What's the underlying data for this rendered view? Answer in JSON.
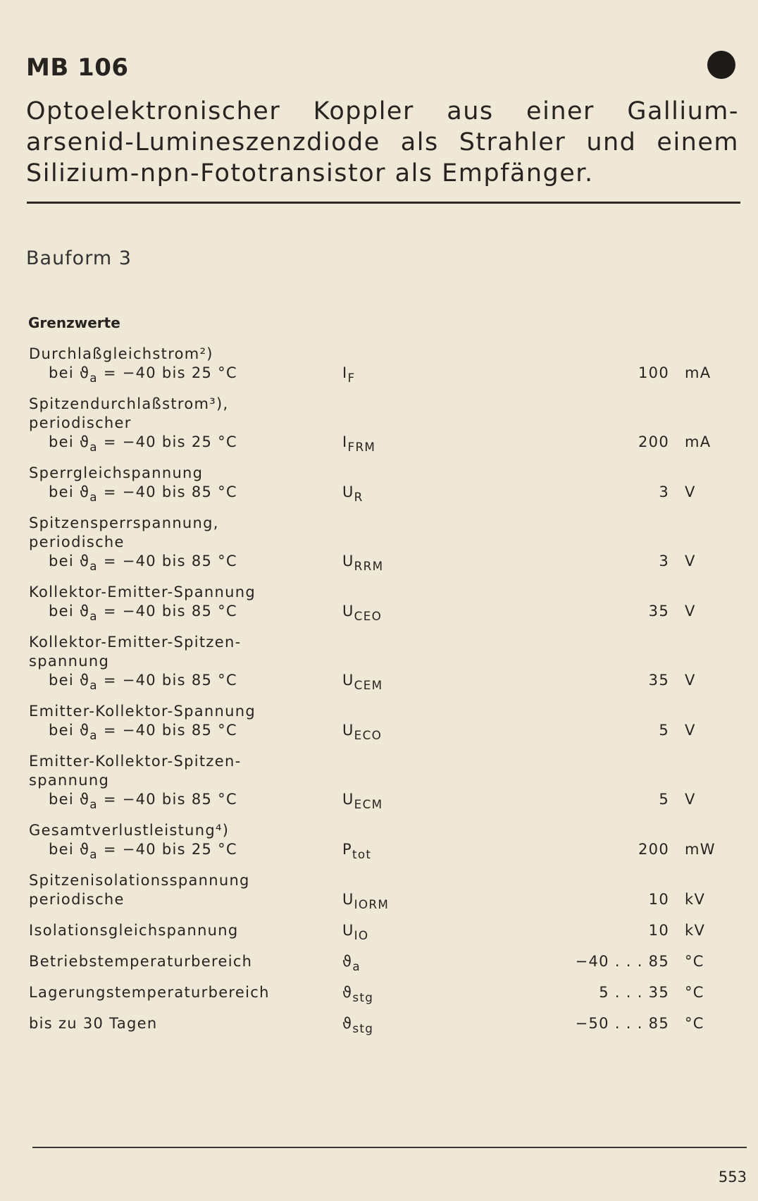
{
  "header": {
    "title": "MB 106",
    "description": [
      "Optoelektronischer Koppler aus einer Gallium-",
      "arsenid-Lumineszenzdiode als Strahler und einem",
      "Silizium-npn-Fototransistor als Empfänger."
    ]
  },
  "subtitle": "Bauform 3",
  "section": "Grenzwerte",
  "table": {
    "rows": [
      {
        "lines": [
          "Durchlaßgleichstrom²)"
        ],
        "condition": {
          "prefix": "bei ϑ",
          "subscript": "a",
          "text": " = −40 bis 25 °C"
        },
        "symbol": "I",
        "symbol_sub": "F",
        "value": "100",
        "unit": "mA"
      },
      {
        "lines": [
          "Spitzendurchlaßstrom³),",
          "periodischer"
        ],
        "condition": {
          "prefix": "bei ϑ",
          "subscript": "a",
          "text": " = −40 bis 25 °C"
        },
        "symbol": "I",
        "symbol_sub": "FRM",
        "value": "200",
        "unit": "mA"
      },
      {
        "lines": [
          "Sperrgleichspannung"
        ],
        "condition": {
          "prefix": "bei ϑ",
          "subscript": "a",
          "text": " = −40 bis 85 °C"
        },
        "symbol": "U",
        "symbol_sub": "R",
        "value": "3",
        "unit": "V"
      },
      {
        "lines": [
          "Spitzensperrspannung,",
          "periodische"
        ],
        "condition": {
          "prefix": "bei ϑ",
          "subscript": "a",
          "text": " = −40 bis 85 °C"
        },
        "symbol": "U",
        "symbol_sub": "RRM",
        "value": "3",
        "unit": "V"
      },
      {
        "lines": [
          "Kollektor-Emitter-Spannung"
        ],
        "condition": {
          "prefix": "bei ϑ",
          "subscript": "a",
          "text": " = −40 bis 85 °C"
        },
        "symbol": "U",
        "symbol_sub": "CEO",
        "value": "35",
        "unit": "V"
      },
      {
        "lines": [
          "Kollektor-Emitter-Spitzen-",
          "spannung"
        ],
        "condition": {
          "prefix": "bei ϑ",
          "subscript": "a",
          "text": " = −40 bis 85 °C"
        },
        "symbol": "U",
        "symbol_sub": "CEM",
        "value": "35",
        "unit": "V"
      },
      {
        "lines": [
          "Emitter-Kollektor-Spannung"
        ],
        "condition": {
          "prefix": "bei ϑ",
          "subscript": "a",
          "text": " = −40 bis 85 °C"
        },
        "symbol": "U",
        "symbol_sub": "ECO",
        "value": "5",
        "unit": "V"
      },
      {
        "lines": [
          "Emitter-Kollektor-Spitzen-",
          "spannung"
        ],
        "condition": {
          "prefix": "bei ϑ",
          "subscript": "a",
          "text": " = −40 bis 85 °C"
        },
        "symbol": "U",
        "symbol_sub": "ECM",
        "value": "5",
        "unit": "V"
      },
      {
        "lines": [
          "Gesamtverlustleistung⁴)"
        ],
        "condition": {
          "prefix": "bei ϑ",
          "subscript": "a",
          "text": " = −40 bis 25 °C"
        },
        "symbol": "P",
        "symbol_sub": "tot",
        "value": "200",
        "unit": "mW"
      },
      {
        "lines": [
          "Spitzenisolationsspannung",
          "periodische"
        ],
        "symbol": "U",
        "symbol_sub": "IORM",
        "value": "10",
        "unit": "kV"
      },
      {
        "lines": [
          "Isolationsgleichspannung"
        ],
        "symbol": "U",
        "symbol_sub": "IO",
        "value": "10",
        "unit": "kV"
      },
      {
        "lines": [
          "Betriebstemperaturbereich"
        ],
        "symbol": "ϑ",
        "symbol_sub": "a",
        "value": "−40 . . . 85",
        "unit": "°C"
      },
      {
        "lines": [
          "Lagerungstemperaturbereich"
        ],
        "symbol": "ϑ",
        "symbol_sub": "stg",
        "value": "5 . . . 35",
        "unit": "°C"
      },
      {
        "lines": [
          "bis zu 30 Tagen"
        ],
        "symbol": "ϑ",
        "symbol_sub": "stg",
        "value": "−50 . . . 85",
        "unit": "°C"
      }
    ]
  },
  "footer": {
    "page_number": "553"
  }
}
